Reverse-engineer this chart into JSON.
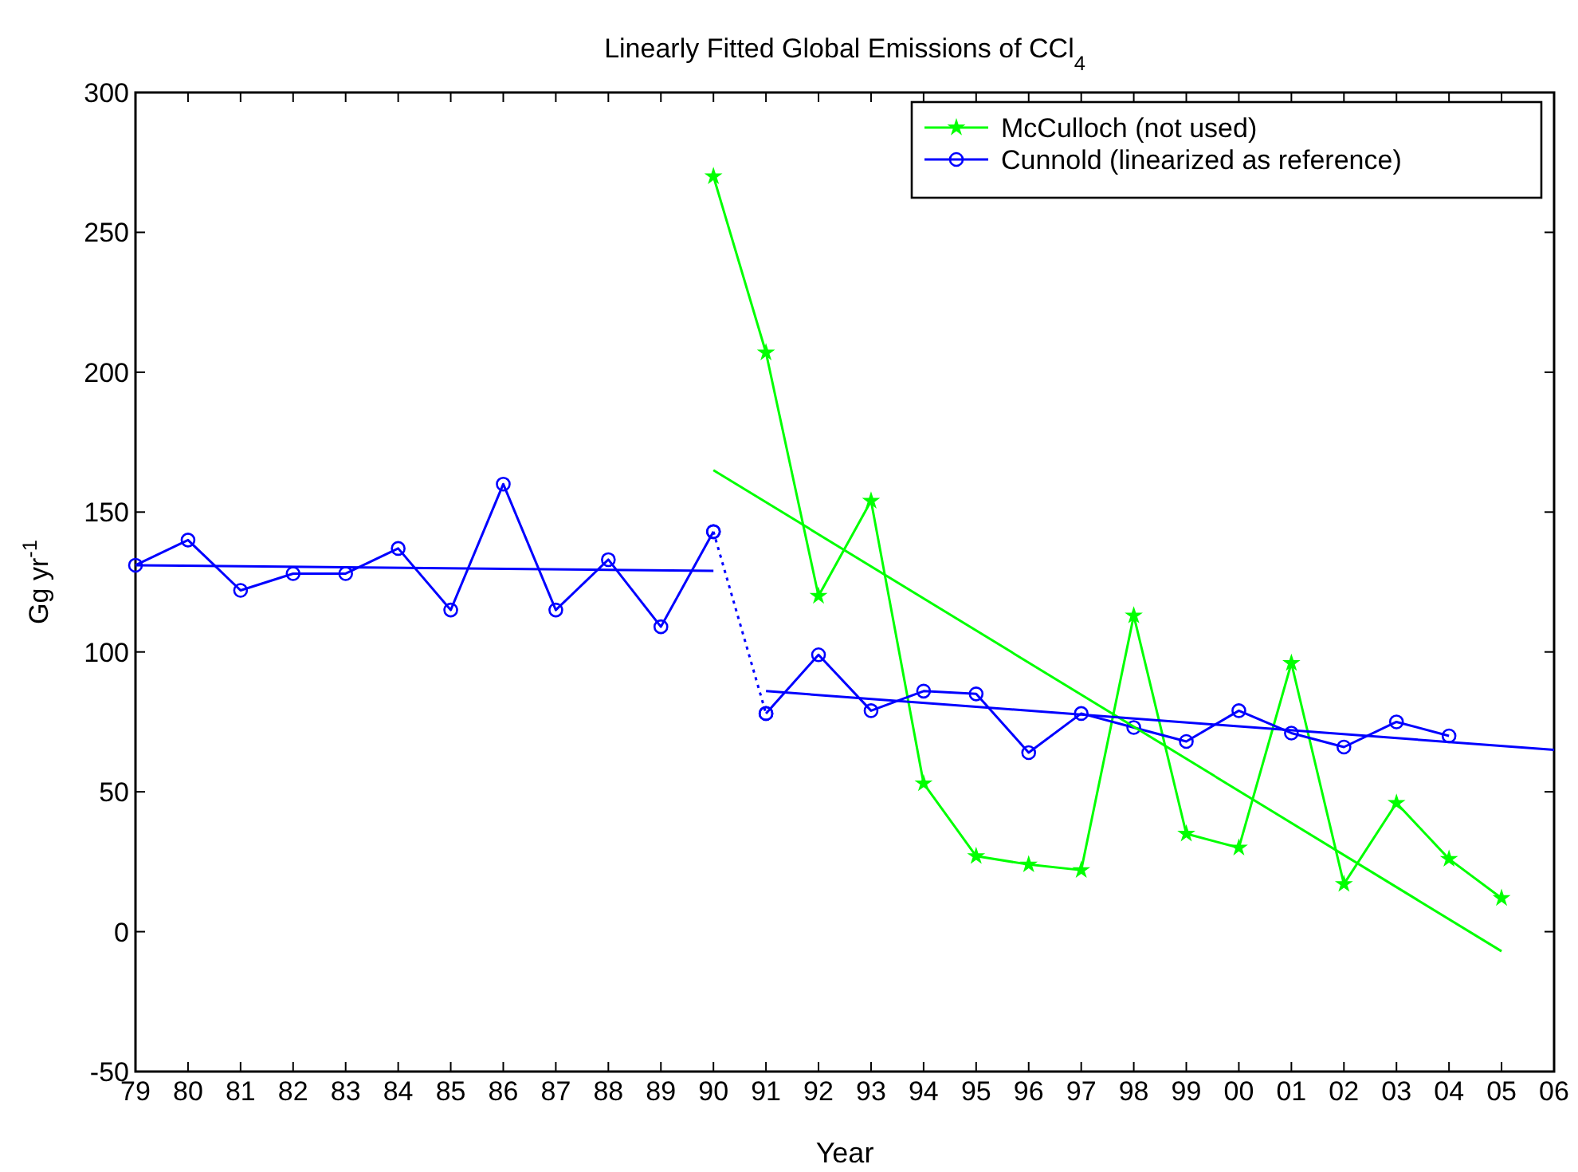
{
  "chart_data": {
    "type": "line",
    "title": "Linearly Fitted Global Emissions of CCl$_{4}$",
    "xlabel": "Year",
    "ylabel": "Gg yr$^{-1}$",
    "xlim": [
      1979,
      2006
    ],
    "ylim": [
      -50,
      300
    ],
    "xticks": [
      {
        "value": 1979,
        "label": "79"
      },
      {
        "value": 1980,
        "label": "80"
      },
      {
        "value": 1981,
        "label": "81"
      },
      {
        "value": 1982,
        "label": "82"
      },
      {
        "value": 1983,
        "label": "83"
      },
      {
        "value": 1984,
        "label": "84"
      },
      {
        "value": 1985,
        "label": "85"
      },
      {
        "value": 1986,
        "label": "86"
      },
      {
        "value": 1987,
        "label": "87"
      },
      {
        "value": 1988,
        "label": "88"
      },
      {
        "value": 1989,
        "label": "89"
      },
      {
        "value": 1990,
        "label": "90"
      },
      {
        "value": 1991,
        "label": "91"
      },
      {
        "value": 1992,
        "label": "92"
      },
      {
        "value": 1993,
        "label": "93"
      },
      {
        "value": 1994,
        "label": "94"
      },
      {
        "value": 1995,
        "label": "95"
      },
      {
        "value": 1996,
        "label": "96"
      },
      {
        "value": 1997,
        "label": "97"
      },
      {
        "value": 1998,
        "label": "98"
      },
      {
        "value": 1999,
        "label": "99"
      },
      {
        "value": 2000,
        "label": "00"
      },
      {
        "value": 2001,
        "label": "01"
      },
      {
        "value": 2002,
        "label": "02"
      },
      {
        "value": 2003,
        "label": "03"
      },
      {
        "value": 2004,
        "label": "04"
      },
      {
        "value": 2005,
        "label": "05"
      },
      {
        "value": 2006,
        "label": "06"
      }
    ],
    "yticks": [
      -50,
      0,
      50,
      100,
      150,
      200,
      250,
      300
    ],
    "grid": false,
    "legend": "top right",
    "series": [
      {
        "name": "McCulloch (not used)",
        "color": "#00ff00",
        "marker": "star",
        "x": [
          1990,
          1991,
          1992,
          1993,
          1994,
          1995,
          1996,
          1997,
          1998,
          1999,
          2000,
          2001,
          2002,
          2003,
          2004,
          2005
        ],
        "values": [
          270,
          207,
          120,
          154,
          53,
          27,
          24,
          22,
          113,
          35,
          30,
          96,
          17,
          46,
          26,
          12
        ]
      },
      {
        "name": "Cunnold (linearized as reference)",
        "color": "#0000ff",
        "marker": "circle",
        "x": [
          1979,
          1980,
          1981,
          1982,
          1983,
          1984,
          1985,
          1986,
          1987,
          1988,
          1989,
          1990
        ],
        "values": [
          131,
          140,
          122,
          128,
          128,
          137,
          115,
          160,
          115,
          133,
          109,
          143
        ]
      },
      {
        "color": "#0000ff",
        "marker": "circle",
        "line_style": "dotted",
        "x": [
          1990,
          1991
        ],
        "values": [
          143,
          78
        ]
      },
      {
        "color": "#0000ff",
        "marker": "circle",
        "x": [
          1991,
          1992,
          1993,
          1994,
          1995,
          1996,
          1997,
          1998,
          1999,
          2000,
          2001,
          2002,
          2003,
          2004
        ],
        "values": [
          78,
          99,
          79,
          86,
          85,
          64,
          78,
          73,
          68,
          79,
          71,
          66,
          75,
          70
        ]
      },
      {
        "color": "#00ff00",
        "marker": "none",
        "x": [
          1990,
          2005
        ],
        "values": [
          165,
          -7
        ]
      },
      {
        "color": "#0000ff",
        "marker": "none",
        "x": [
          1979,
          1990
        ],
        "values": [
          131,
          129
        ]
      },
      {
        "color": "#0000ff",
        "marker": "none",
        "x": [
          1991,
          2006
        ],
        "values": [
          86,
          65
        ]
      }
    ]
  }
}
